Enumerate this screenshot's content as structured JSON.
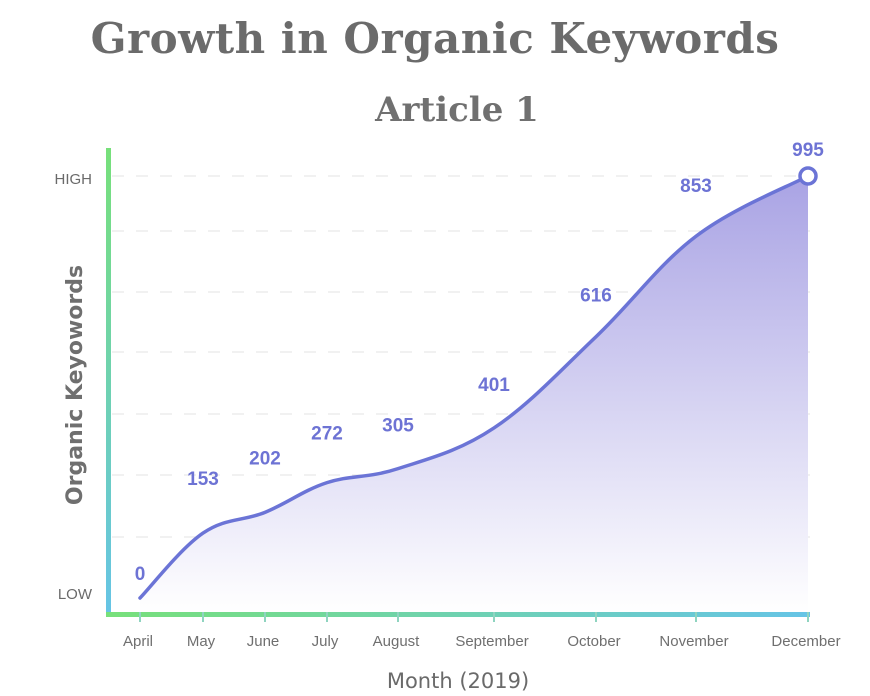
{
  "chart_data": {
    "type": "area",
    "title": "Growth in Organic Keywords",
    "subtitle": "Article 1",
    "xlabel": "Month (2019)",
    "ylabel": "Organic Keyowords",
    "y_low_label": "LOW",
    "y_high_label": "HIGH",
    "categories": [
      "April",
      "May",
      "June",
      "July",
      "August",
      "September",
      "October",
      "November",
      "December"
    ],
    "values": [
      0,
      153,
      202,
      272,
      305,
      401,
      616,
      853,
      995
    ],
    "ylim": [
      0,
      995
    ],
    "colors": {
      "line": "#6b74d6",
      "fill_top": "#a9a3e4",
      "fill_bottom": "#ffffff",
      "axis_top": "#77e07a",
      "axis_bottom": "#66c4e6",
      "xaxis_left": "#77e07a",
      "xaxis_right": "#66c4e6",
      "grid": "#e3e3e3"
    }
  }
}
